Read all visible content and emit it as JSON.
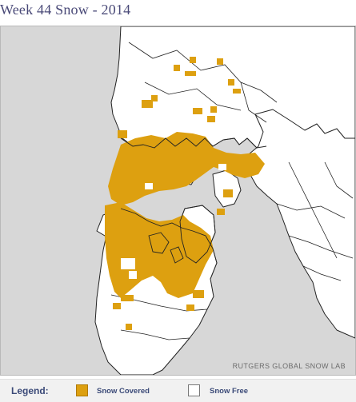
{
  "title": "Week 44 Snow - 2014",
  "credit": "RUTGERS GLOBAL SNOW LAB",
  "legend": {
    "title": "Legend:",
    "items": [
      {
        "label": "Snow Covered",
        "color": "#dda010"
      },
      {
        "label": "Snow Free",
        "color": "#ffffff"
      }
    ]
  },
  "colors": {
    "ocean": "#d7d7d7",
    "land": "#ffffff",
    "snow": "#dda010",
    "border": "#222222"
  }
}
